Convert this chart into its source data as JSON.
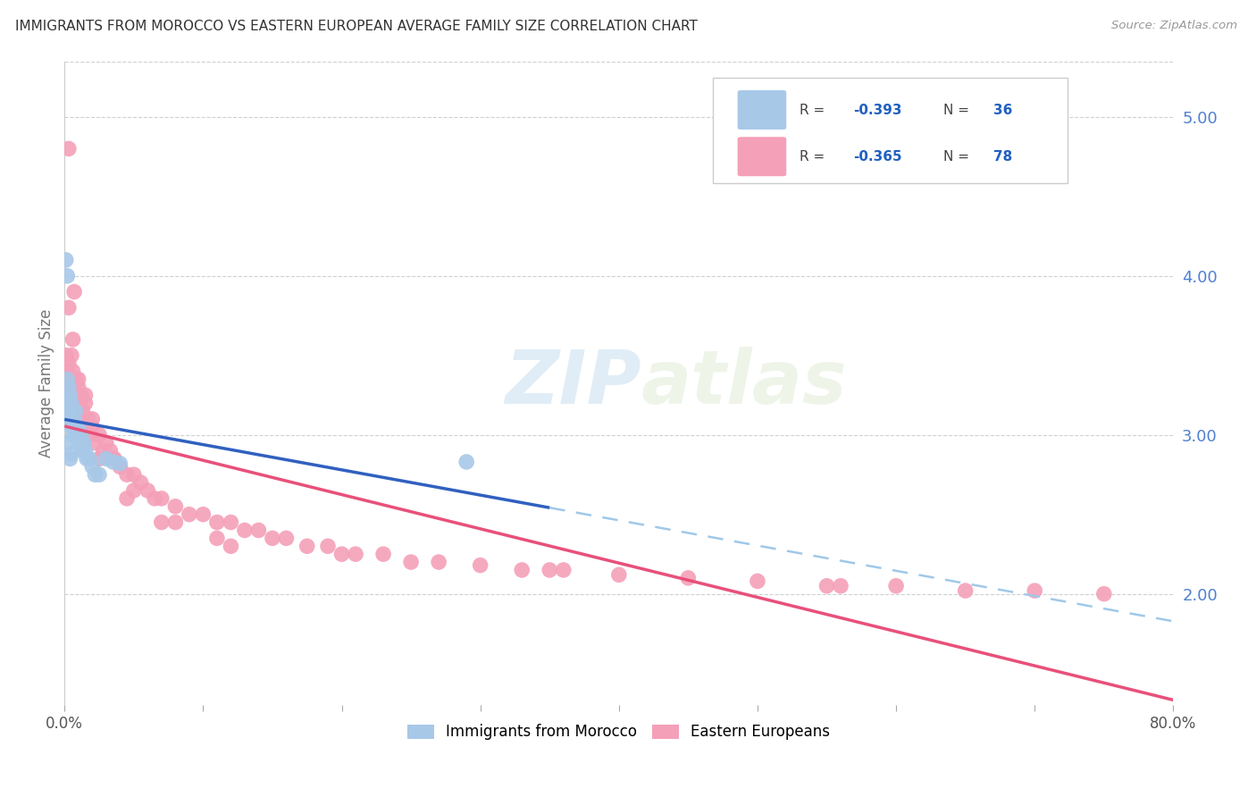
{
  "title": "IMMIGRANTS FROM MOROCCO VS EASTERN EUROPEAN AVERAGE FAMILY SIZE CORRELATION CHART",
  "source": "Source: ZipAtlas.com",
  "ylabel": "Average Family Size",
  "legend_blue_label": "Immigrants from Morocco",
  "legend_pink_label": "Eastern Europeans",
  "watermark_zip": "ZIP",
  "watermark_atlas": "atlas",
  "blue_color": "#a8c8e8",
  "pink_color": "#f4a0b8",
  "blue_line_color": "#3060c0",
  "pink_line_color": "#e8507a",
  "dashed_line_color": "#a0c8e8",
  "xlim": [
    0.0,
    0.8
  ],
  "ylim": [
    1.3,
    5.35
  ],
  "yticks_right": [
    2.0,
    3.0,
    4.0,
    5.0
  ],
  "morocco_x": [
    0.001,
    0.001,
    0.002,
    0.002,
    0.003,
    0.003,
    0.004,
    0.004,
    0.005,
    0.005,
    0.006,
    0.006,
    0.007,
    0.007,
    0.008,
    0.009,
    0.01,
    0.011,
    0.012,
    0.013,
    0.014,
    0.015,
    0.016,
    0.018,
    0.02,
    0.022,
    0.025,
    0.03,
    0.035,
    0.04,
    0.001,
    0.002,
    0.003,
    0.004,
    0.005,
    0.29
  ],
  "morocco_y": [
    3.3,
    3.25,
    3.35,
    3.2,
    3.3,
    3.15,
    3.25,
    3.1,
    3.2,
    3.05,
    3.15,
    3.0,
    3.1,
    3.05,
    3.15,
    3.0,
    3.05,
    2.95,
    3.0,
    2.9,
    2.95,
    2.9,
    2.85,
    2.85,
    2.8,
    2.75,
    2.75,
    2.85,
    2.83,
    2.82,
    4.1,
    4.0,
    2.95,
    2.85,
    2.88,
    2.83
  ],
  "eastern_x": [
    0.001,
    0.002,
    0.003,
    0.004,
    0.005,
    0.005,
    0.006,
    0.007,
    0.008,
    0.009,
    0.01,
    0.011,
    0.012,
    0.013,
    0.014,
    0.015,
    0.016,
    0.017,
    0.018,
    0.02,
    0.022,
    0.025,
    0.028,
    0.03,
    0.033,
    0.036,
    0.04,
    0.045,
    0.05,
    0.055,
    0.06,
    0.065,
    0.07,
    0.08,
    0.09,
    0.1,
    0.11,
    0.12,
    0.13,
    0.14,
    0.15,
    0.16,
    0.175,
    0.19,
    0.21,
    0.23,
    0.25,
    0.27,
    0.3,
    0.33,
    0.36,
    0.4,
    0.45,
    0.5,
    0.55,
    0.6,
    0.65,
    0.7,
    0.75,
    0.003,
    0.006,
    0.01,
    0.02,
    0.035,
    0.05,
    0.08,
    0.12,
    0.003,
    0.007,
    0.015,
    0.025,
    0.045,
    0.07,
    0.11,
    0.2,
    0.35,
    0.56
  ],
  "eastern_y": [
    3.5,
    3.4,
    3.45,
    3.35,
    3.5,
    3.3,
    3.4,
    3.3,
    3.35,
    3.25,
    3.3,
    3.2,
    3.25,
    3.15,
    3.1,
    3.2,
    3.05,
    3.1,
    3.0,
    3.05,
    2.95,
    3.0,
    2.9,
    2.95,
    2.9,
    2.85,
    2.8,
    2.75,
    2.75,
    2.7,
    2.65,
    2.6,
    2.6,
    2.55,
    2.5,
    2.5,
    2.45,
    2.45,
    2.4,
    2.4,
    2.35,
    2.35,
    2.3,
    2.3,
    2.25,
    2.25,
    2.2,
    2.2,
    2.18,
    2.15,
    2.15,
    2.12,
    2.1,
    2.08,
    2.05,
    2.05,
    2.02,
    2.02,
    2.0,
    3.8,
    3.6,
    3.35,
    3.1,
    2.85,
    2.65,
    2.45,
    2.3,
    4.8,
    3.9,
    3.25,
    2.85,
    2.6,
    2.45,
    2.35,
    2.25,
    2.15,
    2.05
  ]
}
